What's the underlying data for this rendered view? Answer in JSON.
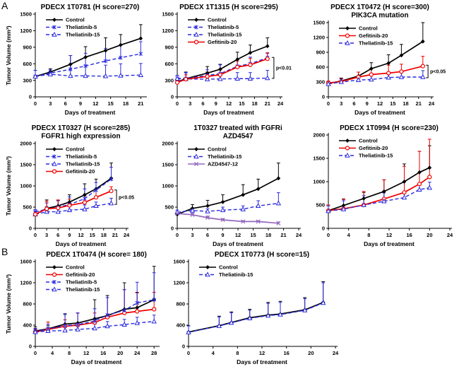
{
  "figure": {
    "panel_a_label": "A",
    "panel_b_label": "B"
  },
  "colors": {
    "control": "#000000",
    "theliatinib": "#2a2ade",
    "gefitinib": "#ee0000",
    "azd4547": "#9468bd"
  },
  "chart_data": [
    {
      "type": "line",
      "title_lines": [
        "PDECX 1T0781 (H score=270)"
      ],
      "ylabel": "Tumor Volume (mm³)",
      "xlabel": "Days of treatment",
      "ylim": [
        0,
        1500
      ],
      "ystep": 300,
      "xlim": [
        0,
        21.8
      ],
      "xticks": [
        0,
        3,
        6,
        9,
        12,
        15,
        18,
        21
      ],
      "x": [
        0,
        3,
        7,
        10,
        14,
        17,
        21
      ],
      "legend_position": "top-left",
      "grid": false,
      "series": [
        {
          "name": "Control",
          "color": "#000000",
          "dash": "solid",
          "marker": "diamond",
          "values": [
            370,
            450,
            590,
            720,
            840,
            940,
            1060
          ],
          "errors": [
            110,
            60,
            160,
            190,
            230,
            190,
            250
          ]
        },
        {
          "name": "Theliatinib-5",
          "color": "#2a2ade",
          "dash": "dashed",
          "marker": "star",
          "values": [
            370,
            430,
            500,
            560,
            650,
            710,
            780
          ],
          "errors": [
            110,
            60,
            250,
            230,
            230,
            230,
            220
          ]
        },
        {
          "name": "Theliatinib-15",
          "color": "#2a2ade",
          "dash": "dashed",
          "marker": "triangle",
          "values": [
            370,
            410,
            380,
            380,
            375,
            385,
            395
          ],
          "errors": [
            110,
            60,
            220,
            190,
            200,
            215,
            210
          ]
        }
      ]
    },
    {
      "type": "line",
      "title_lines": [
        "PDECX 1T1315 (H score=295)"
      ],
      "ylabel": "",
      "xlabel": "Days of treatment",
      "ylim": [
        0,
        1500
      ],
      "ystep": 300,
      "xlim": [
        0,
        24
      ],
      "xticks": [
        0,
        3,
        6,
        9,
        12,
        15,
        18,
        21,
        24
      ],
      "x": [
        0,
        2,
        7,
        10,
        14,
        17,
        21
      ],
      "legend_position": "top-left",
      "grid": false,
      "series": [
        {
          "name": "Control",
          "color": "#000000",
          "dash": "solid",
          "marker": "diamond",
          "values": [
            270,
            330,
            430,
            500,
            680,
            800,
            920
          ],
          "errors": [
            60,
            120,
            120,
            90,
            130,
            140,
            150
          ]
        },
        {
          "name": "Theliatinib-5",
          "color": "#2a2ade",
          "dash": "dashed",
          "marker": "star",
          "values": [
            340,
            330,
            390,
            420,
            555,
            600,
            710
          ],
          "errors": [
            50,
            110,
            100,
            160,
            120,
            120,
            80
          ]
        },
        {
          "name": "Theliatinib-15",
          "color": "#2a2ade",
          "dash": "dashed",
          "marker": "triangle",
          "values": [
            330,
            325,
            320,
            325,
            330,
            330,
            340
          ],
          "errors": [
            60,
            110,
            90,
            90,
            110,
            110,
            140
          ]
        },
        {
          "name": "Gefitinib-20",
          "color": "#ee0000",
          "dash": "solid",
          "marker": "circle",
          "values": [
            260,
            320,
            370,
            400,
            540,
            580,
            690
          ],
          "errors": [
            50,
            80,
            80,
            90,
            110,
            120,
            110
          ]
        }
      ],
      "p_annotation": {
        "text": "p<0.01",
        "day": 22.5,
        "from": 715,
        "to": 335
      }
    },
    {
      "type": "line",
      "title_lines": [
        "PDECX 1T0472 (H score=300)",
        "PIK3CA mutation"
      ],
      "ylabel": "",
      "xlabel": "Days of treatment",
      "ylim": [
        0,
        1500
      ],
      "ystep": 300,
      "xlim": [
        0,
        24
      ],
      "xticks": [
        0,
        3,
        6,
        9,
        12,
        15,
        18,
        21,
        24
      ],
      "x": [
        0,
        3,
        7,
        10,
        14,
        17,
        22
      ],
      "legend_position": "top-left",
      "grid": false,
      "series": [
        {
          "name": "Control",
          "color": "#000000",
          "dash": "solid",
          "marker": "diamond",
          "values": [
            270,
            320,
            420,
            570,
            680,
            840,
            1120
          ],
          "errors": [
            40,
            60,
            80,
            120,
            170,
            220,
            380
          ]
        },
        {
          "name": "Gefitinib-20",
          "color": "#ee0000",
          "dash": "solid",
          "marker": "circle",
          "values": [
            280,
            310,
            400,
            450,
            480,
            510,
            620
          ],
          "errors": [
            40,
            60,
            100,
            130,
            160,
            150,
            200
          ]
        },
        {
          "name": "Theliatinib-15",
          "color": "#2a2ade",
          "dash": "dashed",
          "marker": "triangle",
          "values": [
            260,
            300,
            340,
            350,
            390,
            400,
            400
          ],
          "errors": [
            40,
            60,
            60,
            90,
            110,
            120,
            130
          ]
        }
      ],
      "p_annotation": {
        "text": "p<0.05",
        "day": 23.2,
        "from": 640,
        "to": 385
      }
    },
    {
      "type": "line",
      "title_lines": [
        "PDECX 1T0327 (H score=285)",
        "FGFR1 high expression"
      ],
      "ylabel": "Tumor Volume (mm³)",
      "xlabel": "Days of treatment",
      "ylim": [
        0,
        2000
      ],
      "ystep": 500,
      "xlim": [
        0,
        24
      ],
      "xticks": [
        0,
        3,
        6,
        9,
        12,
        15,
        18,
        21,
        24
      ],
      "x": [
        0,
        3,
        6,
        9,
        13,
        16,
        20
      ],
      "legend_position": "top-left",
      "grid": false,
      "series": [
        {
          "name": "Control",
          "color": "#000000",
          "dash": "solid",
          "marker": "diamond",
          "values": [
            330,
            470,
            530,
            620,
            790,
            930,
            1180
          ],
          "errors": [
            60,
            200,
            130,
            170,
            260,
            230,
            360
          ]
        },
        {
          "name": "Theliatinib-5",
          "color": "#2a2ade",
          "dash": "dashed",
          "marker": "star",
          "values": [
            390,
            450,
            500,
            560,
            700,
            900,
            1160
          ],
          "errors": [
            50,
            150,
            150,
            180,
            230,
            180,
            280
          ]
        },
        {
          "name": "Theliatinib-15",
          "color": "#2a2ade",
          "dash": "dashed",
          "marker": "triangle",
          "values": [
            330,
            390,
            390,
            430,
            450,
            530,
            590
          ],
          "errors": [
            60,
            120,
            100,
            80,
            100,
            90,
            120
          ]
        },
        {
          "name": "Gefitinib-20",
          "color": "#ee0000",
          "dash": "solid",
          "marker": "circle",
          "values": [
            330,
            460,
            480,
            540,
            610,
            730,
            880
          ],
          "errors": [
            60,
            180,
            190,
            150,
            160,
            180,
            100
          ]
        }
      ],
      "p_annotation": {
        "text": "p<0.05",
        "day": 21.4,
        "from": 905,
        "to": 565
      }
    },
    {
      "type": "line",
      "title_lines": [
        "1T0327 treated with FGFRi",
        "AZD4547"
      ],
      "ylabel": "",
      "xlabel": "Days of treatment",
      "ylim": [
        0,
        2000
      ],
      "ystep": 500,
      "xlim": [
        0,
        24
      ],
      "xticks": [
        0,
        3,
        6,
        9,
        12,
        15,
        18,
        21,
        24
      ],
      "x": [
        0,
        3,
        6,
        9,
        13,
        16,
        20
      ],
      "legend_position": "top-left",
      "grid": false,
      "series": [
        {
          "name": "Control",
          "color": "#000000",
          "dash": "solid",
          "marker": "diamond",
          "values": [
            330,
            470,
            530,
            620,
            790,
            930,
            1180
          ],
          "errors": [
            60,
            90,
            130,
            170,
            240,
            230,
            360
          ]
        },
        {
          "name": "Theliatinib-15",
          "color": "#2a2ade",
          "dash": "dashed",
          "marker": "triangle",
          "values": [
            380,
            420,
            400,
            430,
            450,
            530,
            590
          ],
          "errors": [
            50,
            60,
            60,
            70,
            80,
            120,
            250
          ]
        },
        {
          "name": "AZD4547-12",
          "color": "#9468bd",
          "dash": "solid",
          "marker": "x",
          "values": [
            350,
            320,
            250,
            200,
            160,
            160,
            120
          ],
          "errors": [
            40,
            40,
            40,
            30,
            20,
            20,
            30
          ]
        }
      ]
    },
    {
      "type": "line",
      "title_lines": [
        "PDECX 1T0994 (H score=230)"
      ],
      "ylabel": "",
      "xlabel": "Days of treatment",
      "ylim": [
        0,
        2000
      ],
      "ystep": 500,
      "xlim": [
        0,
        24
      ],
      "xticks": [
        0,
        4,
        8,
        12,
        16,
        20,
        24
      ],
      "x": [
        0,
        3,
        7,
        11,
        15,
        18,
        20
      ],
      "legend_position": "top-left",
      "grid": false,
      "series": [
        {
          "name": "Control",
          "color": "#000000",
          "dash": "solid",
          "marker": "diamond",
          "values": [
            380,
            490,
            640,
            790,
            1000,
            1200,
            1300
          ],
          "errors": [
            120,
            140,
            130,
            250,
            380,
            450,
            470
          ]
        },
        {
          "name": "Gefitinib-20",
          "color": "#ee0000",
          "dash": "solid",
          "marker": "circle",
          "values": [
            380,
            420,
            500,
            630,
            770,
            950,
            1100
          ],
          "errors": [
            120,
            200,
            290,
            410,
            560,
            700,
            810
          ]
        },
        {
          "name": "Theliatinib-15",
          "color": "#2a2ade",
          "dash": "dashed",
          "marker": "triangle",
          "values": [
            370,
            410,
            500,
            580,
            660,
            830,
            870
          ],
          "errors": [
            110,
            180,
            200,
            180,
            130,
            120,
            120
          ]
        }
      ]
    },
    {
      "type": "line",
      "title_lines": [
        "PDECX 1T0474 (H score= 180)"
      ],
      "ylabel": "Tumor Volume (mm³)",
      "xlabel": "Days of treatment",
      "ylim": [
        0,
        1600
      ],
      "ystep": 400,
      "xlim": [
        0,
        28.8
      ],
      "xticks": [
        0,
        4,
        8,
        12,
        16,
        20,
        24,
        28
      ],
      "x": [
        0,
        3,
        7,
        10,
        14,
        17,
        21,
        24,
        28
      ],
      "legend_position": "top-left",
      "grid": false,
      "series": [
        {
          "name": "Control",
          "color": "#000000",
          "dash": "solid",
          "marker": "diamond",
          "values": [
            290,
            330,
            420,
            440,
            520,
            580,
            700,
            730,
            880
          ],
          "errors": [
            80,
            60,
            180,
            190,
            360,
            380,
            500,
            290,
            630
          ]
        },
        {
          "name": "Gefitinib-20",
          "color": "#ee0000",
          "dash": "solid",
          "marker": "circle",
          "values": [
            270,
            320,
            380,
            400,
            450,
            550,
            630,
            660,
            700
          ],
          "errors": [
            60,
            140,
            120,
            230,
            180,
            370,
            440,
            350,
            320
          ]
        },
        {
          "name": "Theliatinib-5",
          "color": "#2a2ade",
          "dash": "dashed",
          "marker": "star",
          "values": [
            270,
            330,
            390,
            410,
            480,
            590,
            680,
            820,
            880
          ],
          "errors": [
            70,
            90,
            230,
            220,
            230,
            330,
            390,
            390,
            510
          ]
        },
        {
          "name": "Theliatinib-15",
          "color": "#2a2ade",
          "dash": "dashed",
          "marker": "triangle",
          "values": [
            270,
            290,
            300,
            320,
            340,
            380,
            410,
            440,
            470
          ],
          "errors": [
            50,
            60,
            60,
            70,
            80,
            90,
            100,
            110,
            120
          ]
        }
      ]
    },
    {
      "type": "line",
      "title_lines": [
        "PDECX 1T0773 (H score=15)"
      ],
      "ylabel": "",
      "xlabel": "Days of treatment",
      "ylim": [
        0,
        1600
      ],
      "ystep": 400,
      "xlim": [
        0,
        24
      ],
      "xticks": [
        0,
        4,
        8,
        12,
        16,
        20,
        24
      ],
      "x": [
        0,
        5,
        7,
        10,
        13,
        15,
        19,
        22
      ],
      "legend_position": "top-left",
      "grid": false,
      "series": [
        {
          "name": "Control",
          "color": "#000000",
          "dash": "solid",
          "marker": "diamond",
          "values": [
            270,
            390,
            450,
            540,
            590,
            610,
            690,
            830
          ],
          "errors": [
            120,
            180,
            200,
            160,
            240,
            240,
            230,
            390
          ]
        },
        {
          "name": "Theliatinib-15",
          "color": "#2a2ade",
          "dash": "dashed",
          "marker": "triangle",
          "values": [
            265,
            385,
            445,
            530,
            580,
            600,
            680,
            820
          ],
          "errors": [
            120,
            170,
            190,
            150,
            230,
            230,
            220,
            380
          ]
        }
      ]
    }
  ]
}
